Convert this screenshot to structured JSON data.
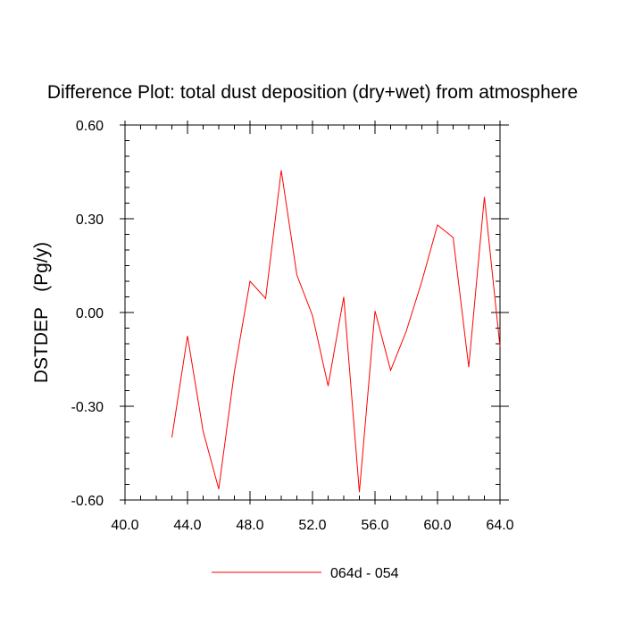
{
  "chart_data": {
    "type": "line",
    "title": "Difference Plot: total dust deposition (dry+wet) from atmosphere",
    "xlabel": "",
    "ylabel": "DSTDEP   (Pg/y)",
    "xlim": [
      40,
      64
    ],
    "ylim": [
      -0.6,
      0.6
    ],
    "xticks": [
      "40.0",
      "44.0",
      "48.0",
      "52.0",
      "56.0",
      "60.0",
      "64.0"
    ],
    "yticks": [
      "0.60",
      "0.30",
      "0.00",
      "-0.30",
      "-0.60"
    ],
    "legend_position": "bottom-center",
    "grid": false,
    "series": [
      {
        "name": "064d - 054",
        "color": "#ff0000",
        "x": [
          43,
          44,
          45,
          46,
          47,
          48,
          49,
          50,
          51,
          52,
          53,
          54,
          55,
          56,
          57,
          58,
          59,
          60,
          61,
          62,
          63,
          64
        ],
        "y": [
          -0.4,
          -0.075,
          -0.38,
          -0.565,
          -0.19,
          0.1,
          0.045,
          0.455,
          0.12,
          -0.01,
          -0.235,
          0.05,
          -0.575,
          0.005,
          -0.185,
          -0.06,
          0.1,
          0.28,
          0.24,
          -0.175,
          0.37,
          -0.11
        ]
      }
    ]
  }
}
